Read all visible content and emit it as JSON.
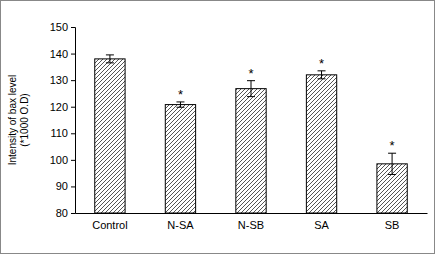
{
  "chart_data": {
    "type": "bar",
    "y_label": "Intensity of bax level\n(*1000 O.D)",
    "categories": [
      "Control",
      "N-SA",
      "N-SB",
      "SA",
      "SB"
    ],
    "values": [
      138,
      120.8,
      126.8,
      132,
      98.5
    ],
    "errors": [
      1.5,
      1,
      3,
      1.5,
      4
    ],
    "annotations": [
      null,
      "*",
      "*",
      "*",
      "*"
    ],
    "color": "#555555",
    "ylim": [
      80,
      150
    ],
    "yticks": [
      80,
      90,
      100,
      110,
      120,
      130,
      140,
      150
    ],
    "grid": false
  }
}
